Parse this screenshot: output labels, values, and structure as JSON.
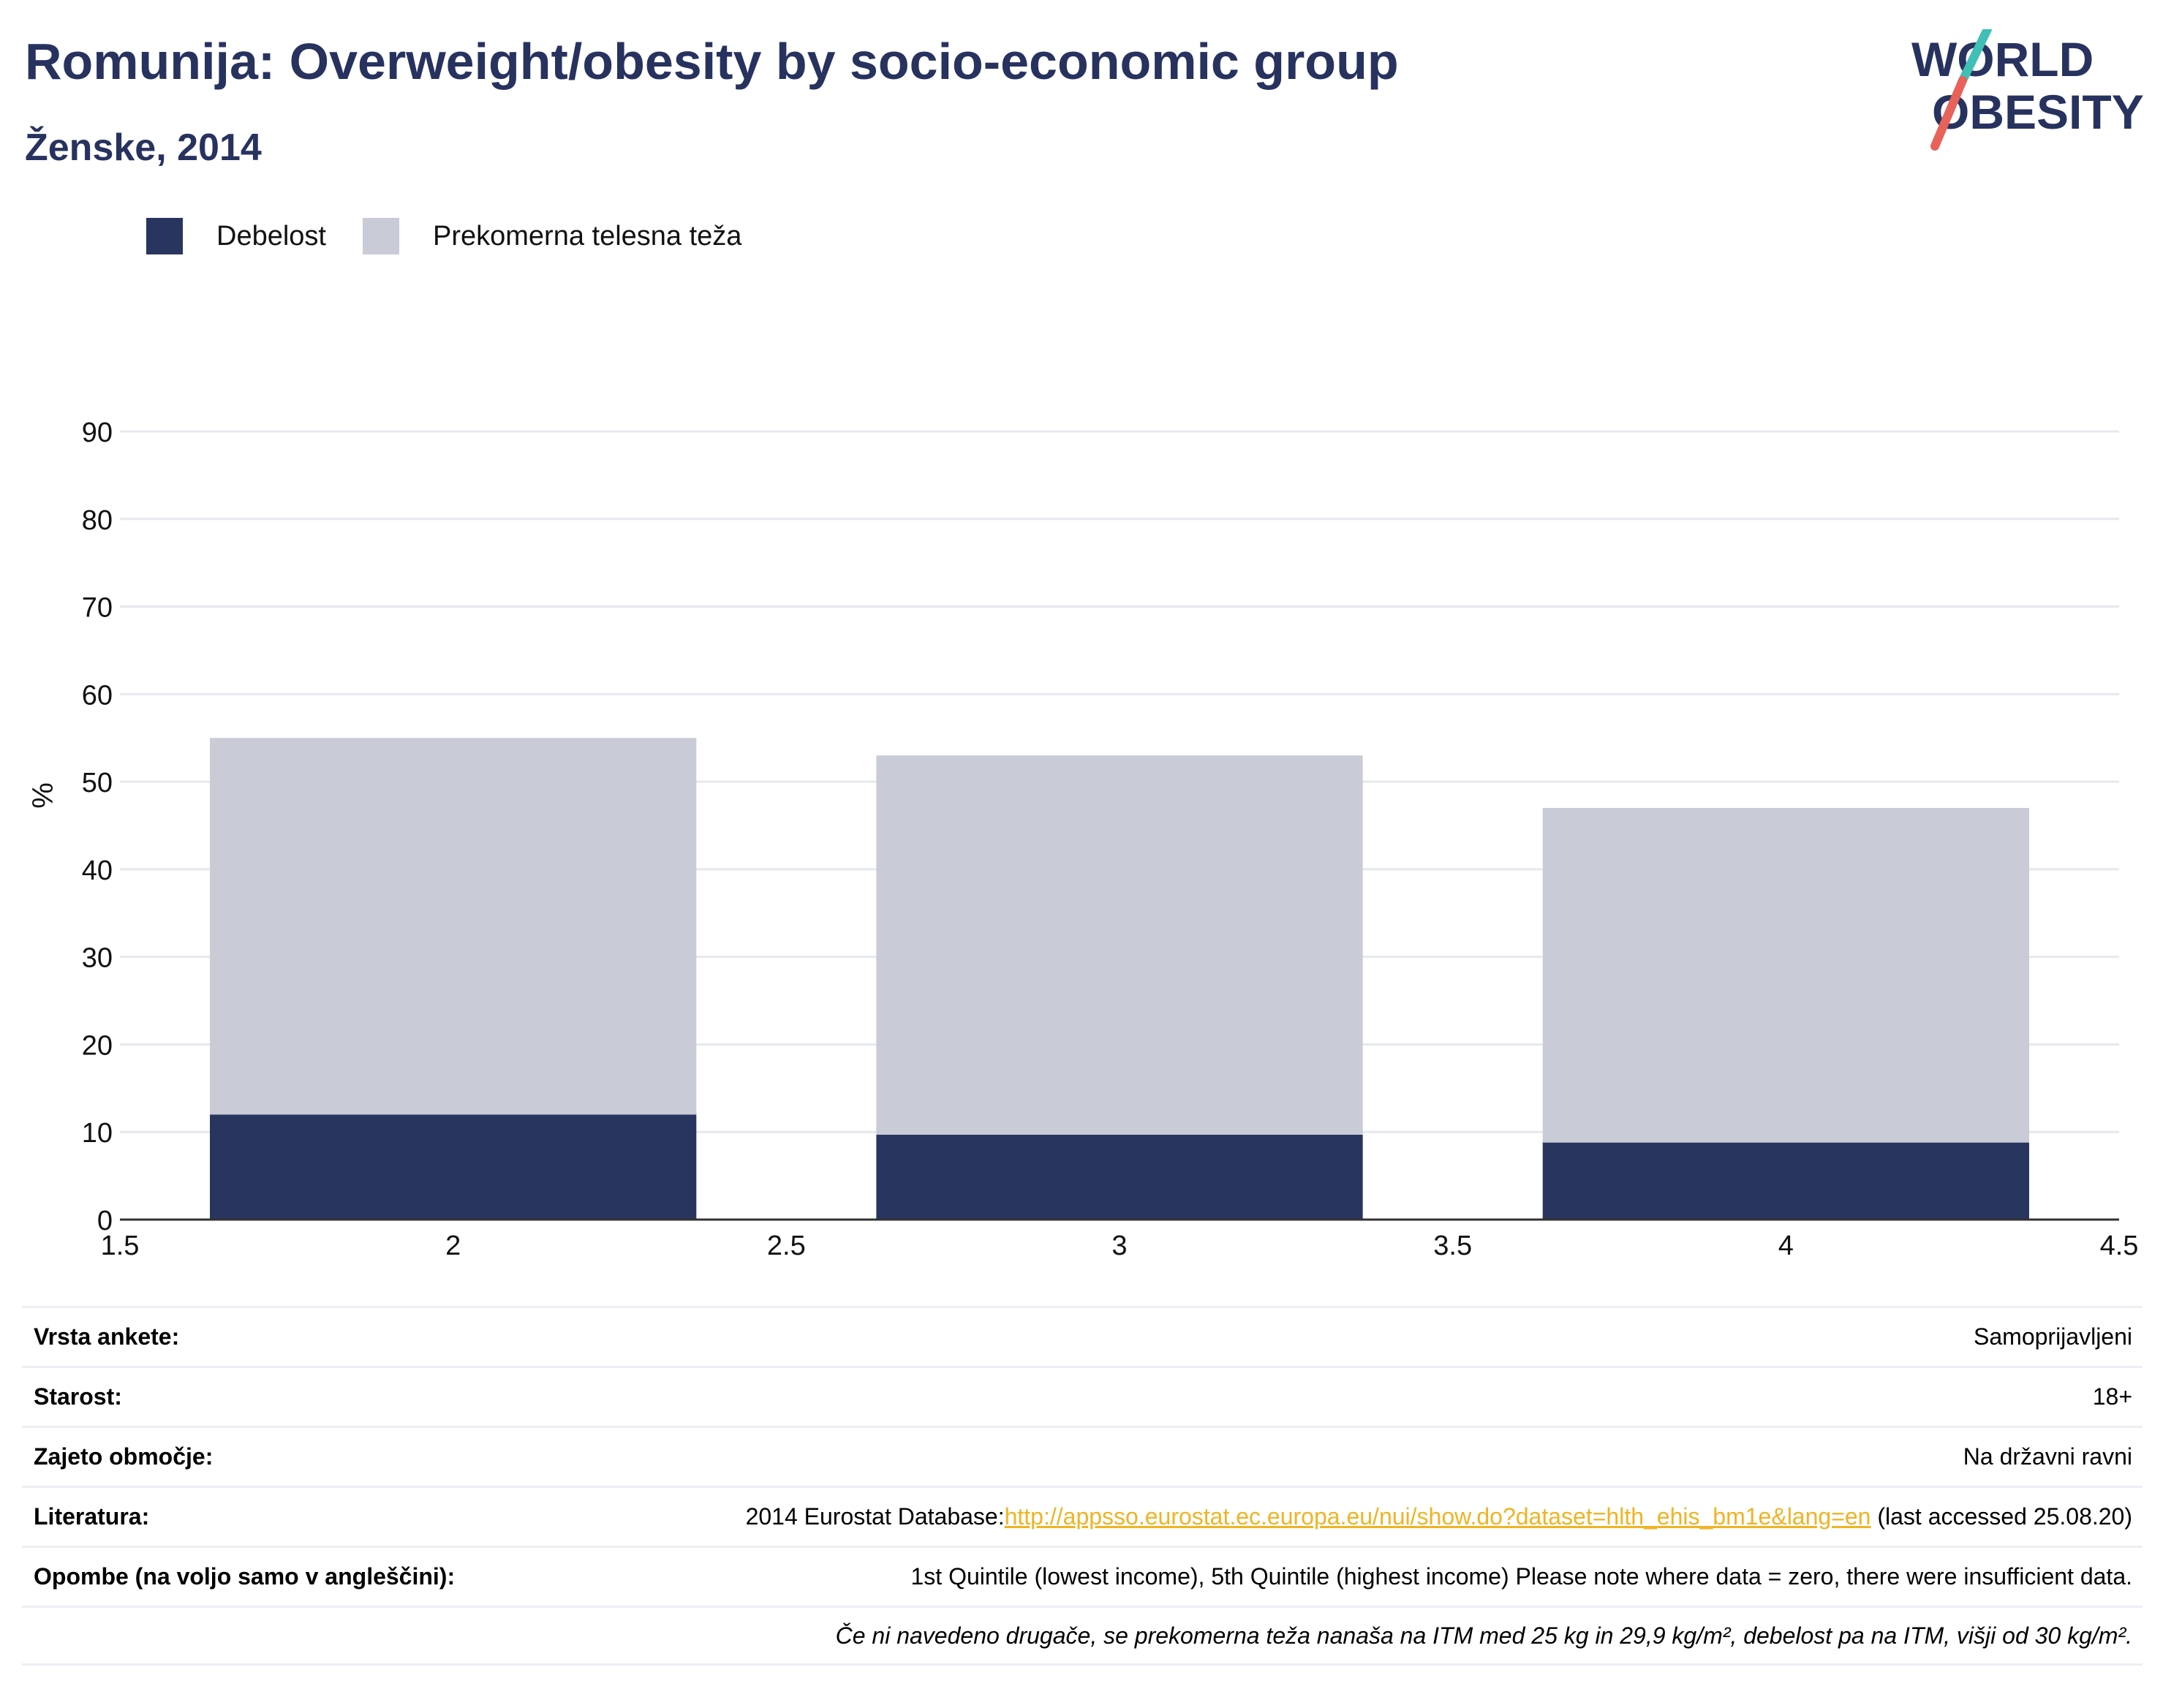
{
  "header": {
    "title": "Romunija: Overweight/obesity by socio-economic group",
    "subtitle": "Ženske, 2014"
  },
  "logo": {
    "line1": "WORLD",
    "line2": "OBESITY",
    "colors": {
      "text": "#27325f",
      "slash_top": "#3fbfb5",
      "slash_bottom": "#e8625a"
    }
  },
  "legend": {
    "items": [
      {
        "label": "Debelost",
        "color": "#28355f"
      },
      {
        "label": "Prekomerna telesna teža",
        "color": "#c9ccd6"
      }
    ]
  },
  "chart_data": {
    "type": "bar",
    "stacked": true,
    "x": [
      2,
      3,
      4
    ],
    "bar_width": 0.73,
    "series": [
      {
        "name": "Debelost",
        "values": [
          12,
          9.7,
          8.8
        ],
        "color": "#28355f"
      },
      {
        "name": "Prekomerna telesna teža",
        "values": [
          43,
          43.3,
          38.2
        ],
        "color": "#c9ccd6"
      }
    ],
    "xlim": [
      1.5,
      4.5
    ],
    "ylim": [
      0,
      90
    ],
    "xticks": [
      1.5,
      2,
      2.5,
      3,
      3.5,
      4,
      4.5
    ],
    "yticks": [
      0,
      10,
      20,
      30,
      40,
      50,
      60,
      70,
      80,
      90
    ],
    "xtick_labels": [
      "1.5",
      "2",
      "2.5",
      "3",
      "3.5",
      "4",
      "4.5"
    ],
    "ytick_labels": [
      "0",
      "10",
      "20",
      "30",
      "40",
      "50",
      "60",
      "70",
      "80",
      "90"
    ],
    "ylabel": "%",
    "xlabel": "",
    "grid": true,
    "legend_position": "top-left"
  },
  "info": {
    "survey_type": {
      "label": "Vrsta ankete:",
      "value": "Samoprijavljeni"
    },
    "age": {
      "label": "Starost:",
      "value": "18+"
    },
    "area": {
      "label": "Zajeto območje:",
      "value": "Na državni ravni"
    },
    "references": {
      "label": "Literatura:",
      "prefix": "2014 Eurostat Database:",
      "link": "http://appsso.eurostat.ec.europa.eu/nui/show.do?dataset=hlth_ehis_bm1e&lang=en",
      "suffix": " (last accessed 25.08.20)"
    },
    "notes": {
      "label": "Opombe (na voljo samo v angleščini):",
      "value": "1st Quintile (lowest income), 5th Quintile (highest income) Please note where data = zero, there were insufficient data."
    },
    "definition": "Če ni navedeno drugače, se prekomerna teža nanaša na ITM med 25 kg in 29,9 kg/m², debelost pa na ITM, višji od 30 kg/m²."
  }
}
